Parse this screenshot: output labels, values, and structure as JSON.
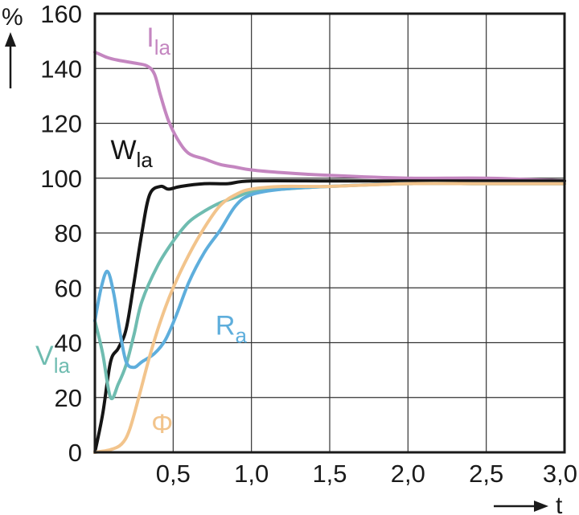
{
  "chart_data": {
    "type": "line",
    "ylabel": "%",
    "xlabel": "t",
    "xlim": [
      0,
      3.0
    ],
    "ylim": [
      0,
      160
    ],
    "grid": true,
    "xticks": [
      "0,5",
      "1,0",
      "1,5",
      "2,0",
      "2,5",
      "3,0"
    ],
    "yticks": [
      "0",
      "20",
      "40",
      "60",
      "80",
      "100",
      "120",
      "140",
      "160"
    ],
    "series": [
      {
        "name": "I",
        "name_sub": "la",
        "color": "#c486c0",
        "label_pos": [
          0.33,
          148
        ],
        "points": [
          [
            0,
            146
          ],
          [
            0.08,
            144
          ],
          [
            0.15,
            143
          ],
          [
            0.25,
            142
          ],
          [
            0.33,
            141
          ],
          [
            0.38,
            138
          ],
          [
            0.42,
            130
          ],
          [
            0.47,
            121
          ],
          [
            0.53,
            114
          ],
          [
            0.6,
            109
          ],
          [
            0.7,
            107
          ],
          [
            0.8,
            105
          ],
          [
            0.9,
            104
          ],
          [
            1.0,
            103
          ],
          [
            1.2,
            102
          ],
          [
            1.5,
            101
          ],
          [
            2.0,
            100
          ],
          [
            2.5,
            100
          ],
          [
            3.0,
            99
          ]
        ]
      },
      {
        "name": "W",
        "name_sub": "la",
        "color": "#151515",
        "label_pos": [
          0.1,
          107
        ],
        "points": [
          [
            0,
            0
          ],
          [
            0.05,
            14
          ],
          [
            0.1,
            33
          ],
          [
            0.15,
            38
          ],
          [
            0.2,
            45
          ],
          [
            0.25,
            62
          ],
          [
            0.3,
            80
          ],
          [
            0.35,
            94
          ],
          [
            0.42,
            97
          ],
          [
            0.47,
            96
          ],
          [
            0.55,
            97
          ],
          [
            0.7,
            98
          ],
          [
            0.85,
            98
          ],
          [
            1.0,
            99
          ],
          [
            1.5,
            99
          ],
          [
            2.0,
            99
          ],
          [
            2.5,
            99
          ],
          [
            3.0,
            99
          ]
        ]
      },
      {
        "name": "V",
        "name_sub": "la",
        "color": "#6fbcb0",
        "label_pos": [
          -0.38,
          32
        ],
        "points": [
          [
            0,
            48
          ],
          [
            0.05,
            36
          ],
          [
            0.1,
            20
          ],
          [
            0.15,
            25
          ],
          [
            0.2,
            32
          ],
          [
            0.25,
            43
          ],
          [
            0.3,
            55
          ],
          [
            0.4,
            68
          ],
          [
            0.5,
            77
          ],
          [
            0.6,
            84
          ],
          [
            0.7,
            88
          ],
          [
            0.8,
            91
          ],
          [
            0.9,
            93
          ],
          [
            1.0,
            95
          ],
          [
            1.2,
            96
          ],
          [
            1.5,
            97
          ],
          [
            2.0,
            98
          ],
          [
            2.5,
            98
          ],
          [
            3.0,
            98
          ]
        ]
      },
      {
        "name": "R",
        "name_sub": "a",
        "color": "#5eaedc",
        "label_pos": [
          0.77,
          43
        ],
        "points": [
          [
            0,
            48
          ],
          [
            0.04,
            60
          ],
          [
            0.08,
            66
          ],
          [
            0.12,
            58
          ],
          [
            0.16,
            44
          ],
          [
            0.2,
            33
          ],
          [
            0.25,
            31
          ],
          [
            0.3,
            33
          ],
          [
            0.38,
            36
          ],
          [
            0.45,
            41
          ],
          [
            0.52,
            50
          ],
          [
            0.6,
            62
          ],
          [
            0.7,
            73
          ],
          [
            0.8,
            81
          ],
          [
            0.9,
            90
          ],
          [
            1.0,
            94
          ],
          [
            1.2,
            96
          ],
          [
            1.5,
            97
          ],
          [
            2.0,
            98
          ],
          [
            2.5,
            98
          ],
          [
            3.0,
            98
          ]
        ]
      },
      {
        "name": "Φ",
        "name_sub": "",
        "color": "#f2c48c",
        "label_pos": [
          0.36,
          7
        ],
        "points": [
          [
            0,
            0
          ],
          [
            0.1,
            1
          ],
          [
            0.17,
            3
          ],
          [
            0.22,
            8
          ],
          [
            0.28,
            20
          ],
          [
            0.35,
            35
          ],
          [
            0.42,
            48
          ],
          [
            0.5,
            60
          ],
          [
            0.6,
            72
          ],
          [
            0.7,
            82
          ],
          [
            0.8,
            90
          ],
          [
            0.9,
            94
          ],
          [
            1.0,
            96
          ],
          [
            1.2,
            97
          ],
          [
            1.5,
            97
          ],
          [
            2.0,
            98
          ],
          [
            2.5,
            98
          ],
          [
            3.0,
            98
          ]
        ]
      }
    ]
  }
}
